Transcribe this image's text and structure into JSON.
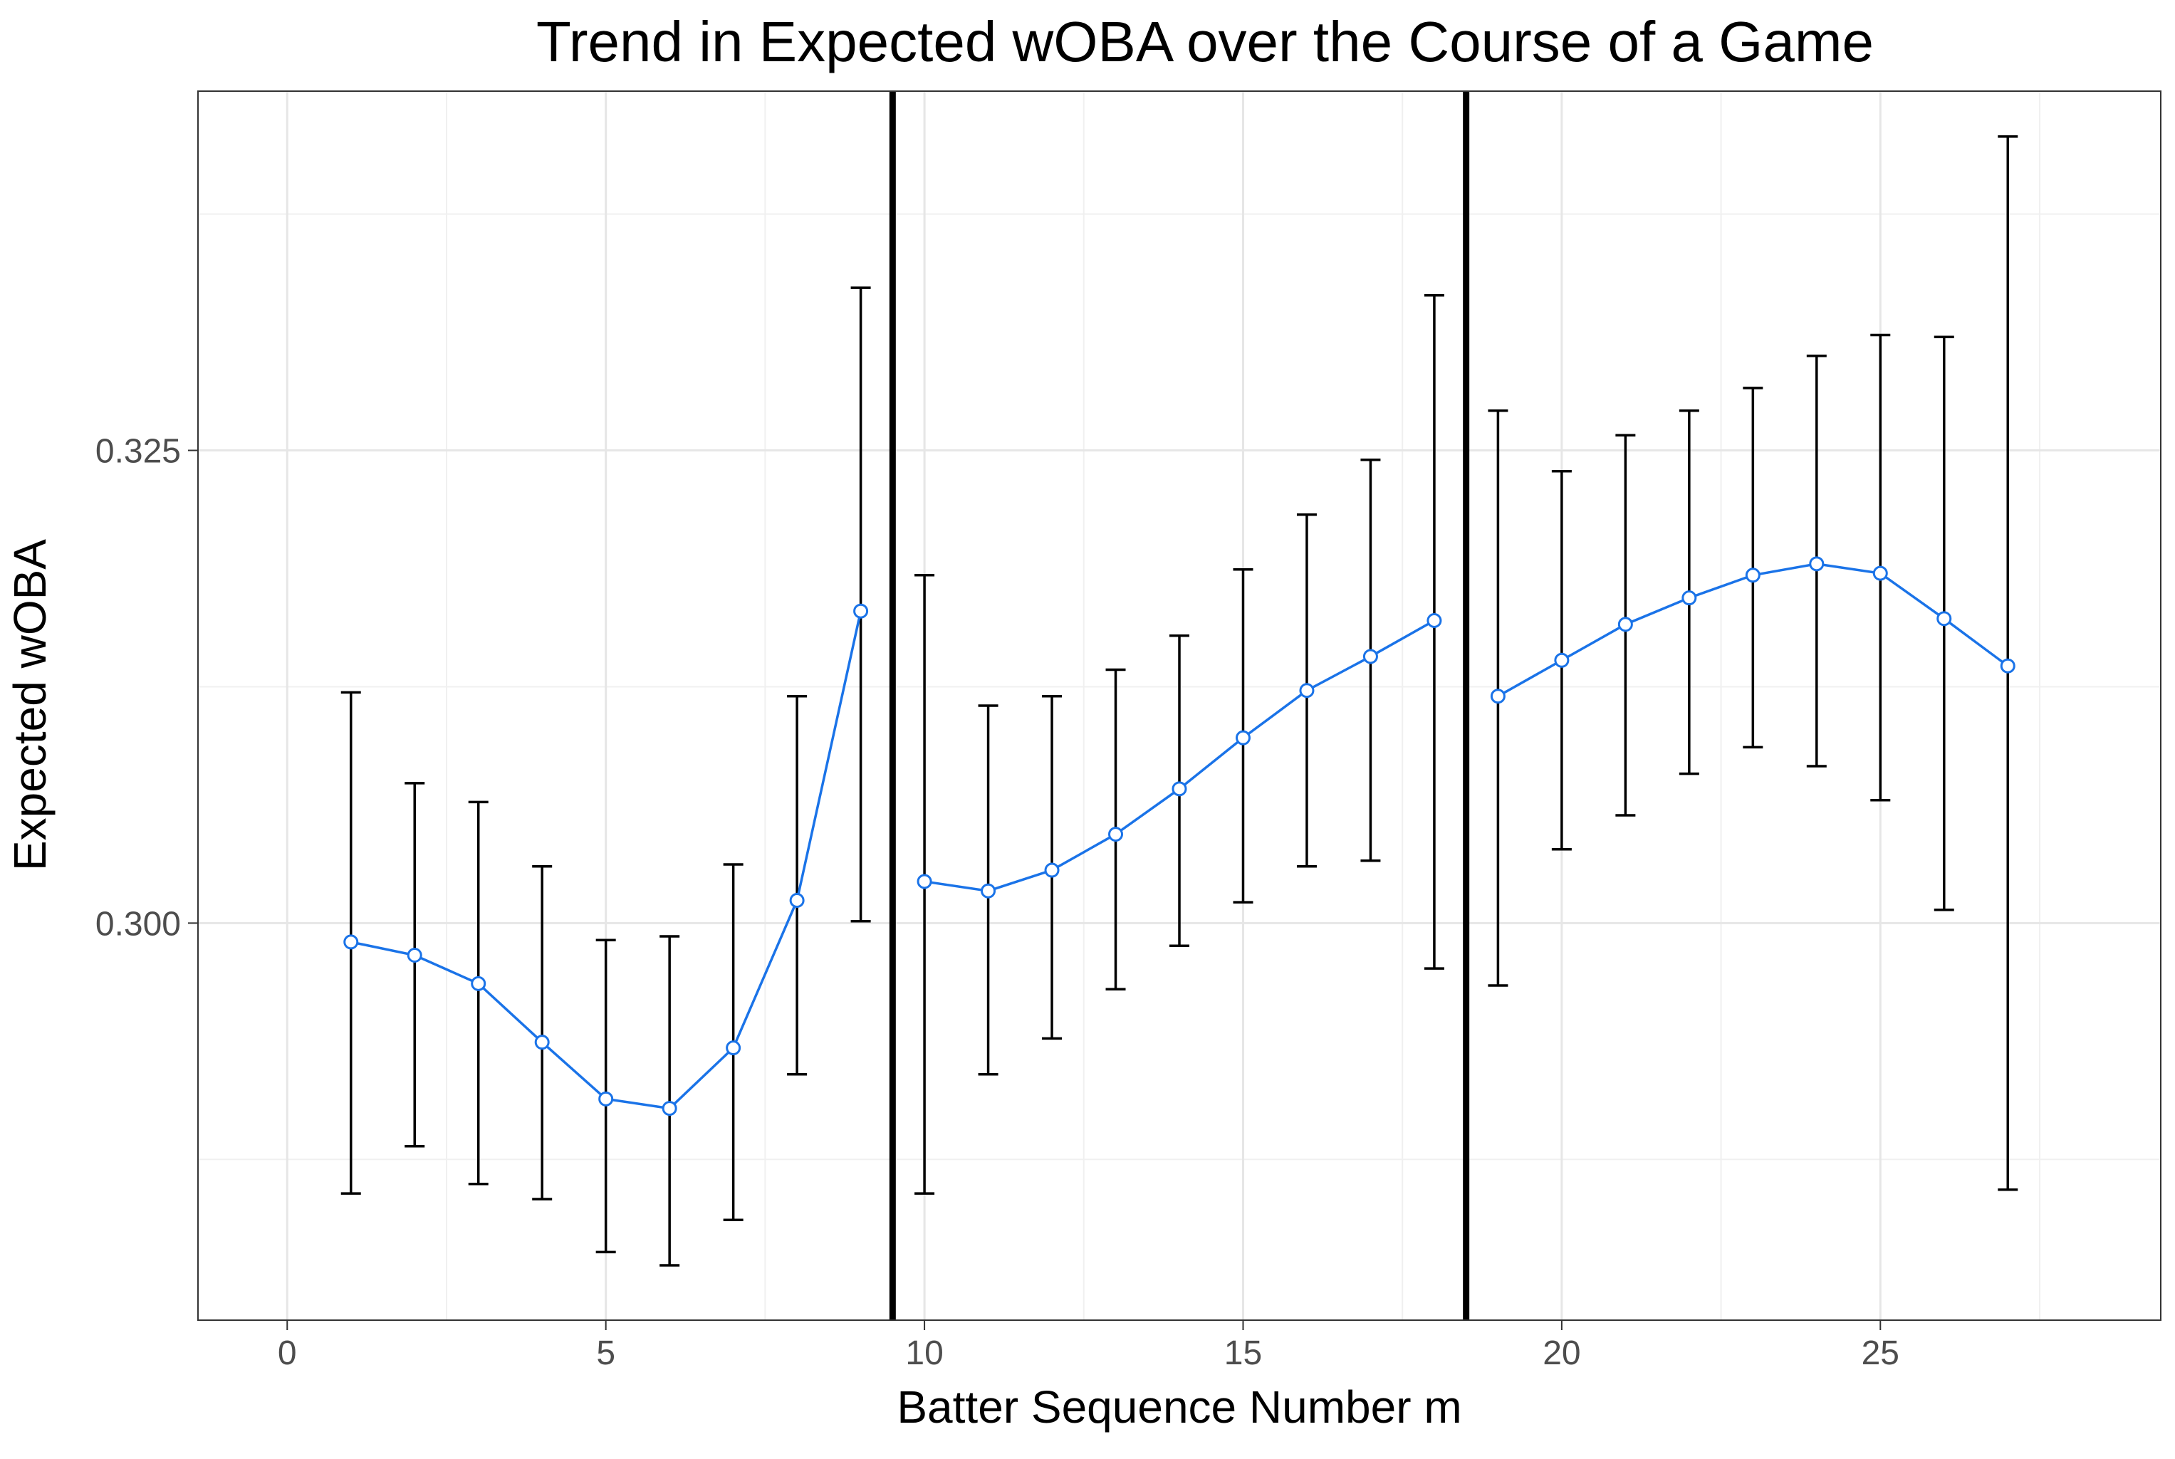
{
  "chart_data": {
    "type": "line",
    "title": "Trend in Expected wOBA over the Course of a Game",
    "xlabel": "Batter Sequence Number m",
    "ylabel": "Expected wOBA",
    "xlim": [
      -1.4,
      29.4
    ],
    "ylim": [
      0.279,
      0.344
    ],
    "x_ticks": [
      0,
      5,
      10,
      15,
      20,
      25
    ],
    "x_tick_labels": [
      "0",
      "5",
      "10",
      "15",
      "20",
      "25"
    ],
    "y_ticks": [
      0.3,
      0.325
    ],
    "y_tick_labels": [
      "0.300",
      "0.325"
    ],
    "grid": true,
    "vertical_lines": [
      9.5,
      18.5
    ],
    "series": [
      {
        "x": [
          1,
          2,
          3,
          4,
          5,
          6,
          7,
          8,
          9,
          10,
          11,
          12,
          13,
          14,
          15,
          16,
          17,
          18,
          19,
          20,
          21,
          22,
          23,
          24,
          25,
          26,
          27
        ],
        "values": [
          0.299,
          0.2983,
          0.2968,
          0.2937,
          0.2907,
          0.2902,
          0.2934,
          0.3012,
          0.3165,
          0.3022,
          0.3017,
          0.3028,
          0.3047,
          0.3071,
          0.3098,
          0.3123,
          0.3141,
          0.316,
          0.312,
          0.3139,
          0.3158,
          0.3172,
          0.3184,
          0.319,
          0.3185,
          0.3161,
          0.3136
        ],
        "lower": [
          0.2857,
          0.2882,
          0.2862,
          0.2854,
          0.2826,
          0.2819,
          0.2843,
          0.292,
          0.3001,
          0.2857,
          0.292,
          0.2939,
          0.2965,
          0.2988,
          0.3011,
          0.303,
          0.3033,
          0.2976,
          0.2967,
          0.3039,
          0.3057,
          0.3079,
          0.3093,
          0.3083,
          0.3065,
          0.3007,
          0.2859
        ],
        "upper": [
          0.3122,
          0.3074,
          0.3064,
          0.303,
          0.2991,
          0.2993,
          0.3031,
          0.312,
          0.3336,
          0.3184,
          0.3115,
          0.312,
          0.3134,
          0.3152,
          0.3187,
          0.3216,
          0.3245,
          0.3332,
          0.3271,
          0.3239,
          0.3258,
          0.3271,
          0.3283,
          0.33,
          0.3311,
          0.331,
          0.3416
        ],
        "color": "#1a73e8"
      }
    ]
  }
}
